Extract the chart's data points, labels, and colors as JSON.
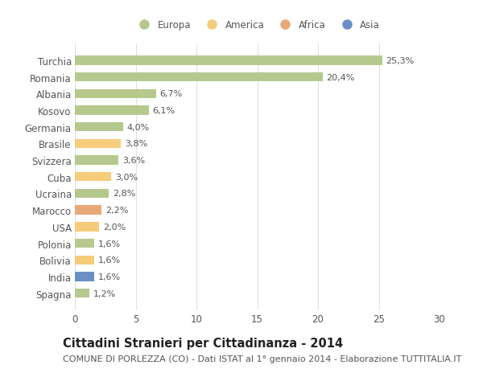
{
  "categories": [
    "Turchia",
    "Romania",
    "Albania",
    "Kosovo",
    "Germania",
    "Brasile",
    "Svizzera",
    "Cuba",
    "Ucraina",
    "Marocco",
    "USA",
    "Polonia",
    "Bolivia",
    "India",
    "Spagna"
  ],
  "values": [
    25.3,
    20.4,
    6.7,
    6.1,
    4.0,
    3.8,
    3.6,
    3.0,
    2.8,
    2.2,
    2.0,
    1.6,
    1.6,
    1.6,
    1.2
  ],
  "labels": [
    "25,3%",
    "20,4%",
    "6,7%",
    "6,1%",
    "4,0%",
    "3,8%",
    "3,6%",
    "3,0%",
    "2,8%",
    "2,2%",
    "2,0%",
    "1,6%",
    "1,6%",
    "1,6%",
    "1,2%"
  ],
  "colors": [
    "#b5c98e",
    "#b5c98e",
    "#b5c98e",
    "#b5c98e",
    "#b5c98e",
    "#f5cc7a",
    "#b5c98e",
    "#f5cc7a",
    "#b5c98e",
    "#e8a878",
    "#f5cc7a",
    "#b5c98e",
    "#f5cc7a",
    "#6b8fc4",
    "#b5c98e"
  ],
  "legend_labels": [
    "Europa",
    "America",
    "Africa",
    "Asia"
  ],
  "legend_colors": [
    "#b5c98e",
    "#f5cc7a",
    "#e8a878",
    "#6b8fc4"
  ],
  "title": "Cittadini Stranieri per Cittadinanza - 2014",
  "subtitle": "COMUNE DI PORLEZZA (CO) - Dati ISTAT al 1° gennaio 2014 - Elaborazione TUTTITALIA.IT",
  "xlim": [
    0,
    30
  ],
  "xticks": [
    0,
    5,
    10,
    15,
    20,
    25,
    30
  ],
  "background_color": "#ffffff",
  "plot_bg_color": "#ffffff",
  "bar_height": 0.55,
  "grid_color": "#e0e0e0",
  "title_fontsize": 10.5,
  "subtitle_fontsize": 8,
  "tick_fontsize": 8.5,
  "label_fontsize": 8,
  "legend_fontsize": 8.5
}
